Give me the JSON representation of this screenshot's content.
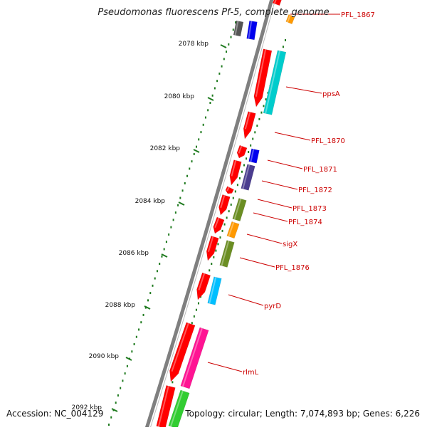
{
  "title": "Pseudomonas fluorescens Pf-5, complete genome",
  "accession": "Accession: NC_004129",
  "topology": "Topology: circular; Length: 7,074,893 bp; Genes: 6,226",
  "colors": {
    "backbone": "#7f7f7f",
    "ruler": "#1e7a1e",
    "label": "#cc0000",
    "reverse_strand_gene": "#ff0000"
  },
  "ruler_ticks": [
    "2078 kbp",
    "2080 kbp",
    "2082 kbp",
    "2084 kbp",
    "2086 kbp",
    "2088 kbp",
    "2090 kbp",
    "2092 kbp"
  ],
  "gene_labels": [
    "PFL_1867",
    "ppsA",
    "PFL_1870",
    "PFL_1871",
    "PFL_1872",
    "PFL_1873",
    "PFL_1874",
    "sigX",
    "PFL_1876",
    "pyrD",
    "rlmL"
  ]
}
